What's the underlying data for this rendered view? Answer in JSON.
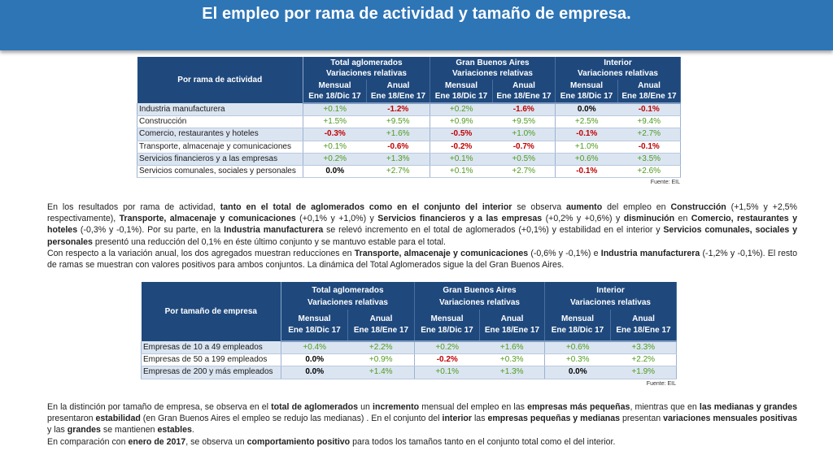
{
  "title": "El empleo por rama de actividad y tamaño de empresa.",
  "table1": {
    "row_header": "Por rama de actividad",
    "groups": [
      {
        "name": "Total aglomerados",
        "sub": "Variaciones relativas"
      },
      {
        "name": "Gran Buenos Aires",
        "sub": "Variaciones relativas"
      },
      {
        "name": "Interior",
        "sub": "Variaciones relativas"
      }
    ],
    "col_mensual": "Mensual",
    "col_mensual_period": "Ene 18/Dic 17",
    "col_anual": "Anual",
    "col_anual_period": "Ene 18/Ene 17",
    "rows": [
      {
        "label": "Industria manufacturera",
        "v": [
          "+0.1%",
          "-1.2%",
          "+0.2%",
          "-1.6%",
          "0.0%",
          "-0.1%"
        ]
      },
      {
        "label": "Construcción",
        "v": [
          "+1.5%",
          "+9.5%",
          "+0.9%",
          "+9.5%",
          "+2.5%",
          "+9.4%"
        ]
      },
      {
        "label": "Comercio, restaurantes y hoteles",
        "v": [
          "-0.3%",
          "+1.6%",
          "-0.5%",
          "+1.0%",
          "-0.1%",
          "+2.7%"
        ]
      },
      {
        "label": "Transporte, almacenaje y comunicaciones",
        "v": [
          "+0.1%",
          "-0.6%",
          "-0.2%",
          "-0.7%",
          "+1.0%",
          "-0.1%"
        ]
      },
      {
        "label": "Servicios financieros y a las empresas",
        "v": [
          "+0.2%",
          "+1.3%",
          "+0.1%",
          "+0.5%",
          "+0.6%",
          "+3.5%"
        ]
      },
      {
        "label": "Servicios comunales, sociales y personales",
        "v": [
          "0.0%",
          "+2.7%",
          "+0.1%",
          "+2.7%",
          "-0.1%",
          "+2.6%"
        ]
      }
    ],
    "source": "Fuente: EIL"
  },
  "paragraph1": {
    "s1": "En los resultados por rama de actividad, ",
    "b1": "tanto en el total de aglomerados como en el conjunto del interior",
    "s2": " se observa ",
    "b2": "aumento",
    "s3": " del empleo en ",
    "b3": "Construcción",
    "s4": " (+1,5% y +2,5% respectivamente), ",
    "b4": "Transporte, almacenaje y comunicaciones",
    "s5": " (+0,1% y +1,0%) y ",
    "b5": "Servicios financieros y a las empresas",
    "s6": " (+0,2% y +0,6%) y ",
    "b6": "disminución",
    "s7": " en ",
    "b7": "Comercio, restaurantes y hoteles",
    "s8": " (-0,3% y -0,1%). Por su parte, en la ",
    "b8": "Industria manufacturera",
    "s9": " se relevó incremento en el total de aglomerados (+0,1%) y estabilidad en el interior y ",
    "b9": "Servicios comunales, sociales y personales",
    "s10": " presentó una reducción del 0,1% en éste último conjunto y se mantuvo estable para el total.",
    "s11": "Con respecto a la variación anual, los dos agregados muestran reducciones en ",
    "b11": "Transporte, almacenaje y comunicaciones",
    "s12": " (-0,6% y -0,1%) e ",
    "b12": "Industria manufacturera",
    "s13": " (-1,2% y -0,1%). El resto de ramas se muestran con valores positivos para ambos conjuntos. La dinámica del Total Aglomerados sigue la del Gran Buenos Aires."
  },
  "table2": {
    "row_header": "Por tamaño de empresa",
    "groups": [
      {
        "name": "Total aglomerados",
        "sub": "Variaciones relativas"
      },
      {
        "name": "Gran Buenos Aires",
        "sub": "Variaciones relativas"
      },
      {
        "name": "Interior",
        "sub": "Variaciones relativas"
      }
    ],
    "col_mensual": "Mensual",
    "col_mensual_period": "Ene 18/Dic 17",
    "col_anual": "Anual",
    "col_anual_period": "Ene 18/Ene 17",
    "rows": [
      {
        "label": "Empresas de 10 a 49 empleados",
        "v": [
          "+0.4%",
          "+2.2%",
          "+0.2%",
          "+1.6%",
          "+0.6%",
          "+3.3%"
        ]
      },
      {
        "label": "Empresas de 50 a 199 empleados",
        "v": [
          "0.0%",
          "+0.9%",
          "-0.2%",
          "+0.3%",
          "+0.3%",
          "+2.2%"
        ]
      },
      {
        "label": "Empresas de 200 y más empleados",
        "v": [
          "0.0%",
          "+1.4%",
          "+0.1%",
          "+1.3%",
          "0.0%",
          "+1.9%"
        ]
      }
    ],
    "source": "Fuente: EIL"
  },
  "paragraph2": {
    "s1": "En la distinción por tamaño de empresa, se observa en el ",
    "b1": "total de aglomerados",
    "s2": " un ",
    "b2": "incremento",
    "s3": " mensual del empleo en las ",
    "b3": "empresas más pequeñas",
    "s4": ", mientras que en ",
    "b4": "las medianas y grandes",
    "s5": " presentaron ",
    "b5": "estabilidad",
    "s6": " (en Gran Buenos Aires el empleo se redujo las medianas) . En el conjunto del ",
    "b6": "interior",
    "s7": " las ",
    "b7": "empresas pequeñas y medianas",
    "s8": " presentan ",
    "b8": "variaciones mensuales positivas",
    "s9": " y las ",
    "b9": "grandes",
    "s10": " se mantienen ",
    "b10": "estables",
    "s11": ".",
    "s12": "En comparación con ",
    "b12": "enero de 2017",
    "s13": ", se observa un  ",
    "b13": "comportamiento positivo",
    "s14": " para todos los tamaños tanto en el conjunto total como el del interior."
  }
}
